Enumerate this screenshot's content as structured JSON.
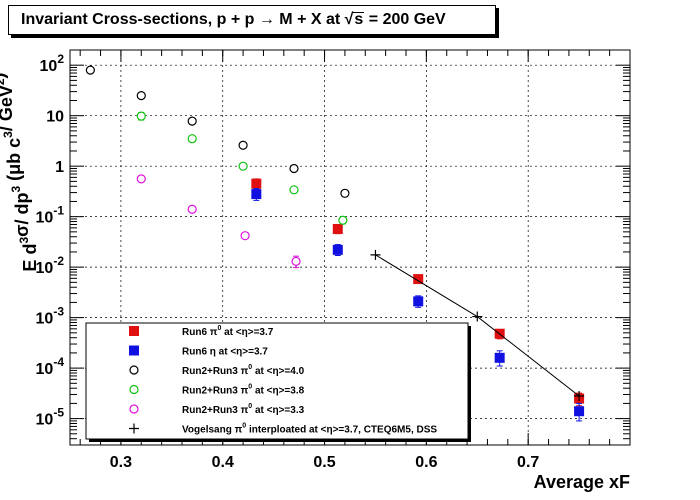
{
  "title": {
    "prefix": "Invariant Cross-sections, p + p → M + X at ",
    "sqrt": "√",
    "s": "s",
    "suffix": " = 200 GeV"
  },
  "chart_data": {
    "type": "scatter",
    "xlabel": "Average xF",
    "ylabel": "E d³σ/ dp³ (μb c³/ GeV²)",
    "xlim": [
      0.25,
      0.8
    ],
    "ylim": [
      3e-06,
      200
    ],
    "ylog": true,
    "grid": true,
    "legend_position": "bottom-left",
    "x_ticks": [
      {
        "value": 0.3,
        "label": "0.3"
      },
      {
        "value": 0.4,
        "label": "0.4"
      },
      {
        "value": 0.5,
        "label": "0.5"
      },
      {
        "value": 0.6,
        "label": "0.6"
      },
      {
        "value": 0.7,
        "label": "0.7"
      }
    ],
    "y_ticks": [
      {
        "value": 100,
        "mant": "10",
        "exp": "2"
      },
      {
        "value": 10,
        "mant": "10",
        "exp": ""
      },
      {
        "value": 1,
        "mant": "1",
        "exp": ""
      },
      {
        "value": 0.1,
        "mant": "10",
        "exp": "-1"
      },
      {
        "value": 0.01,
        "mant": "10",
        "exp": "-2"
      },
      {
        "value": 0.001,
        "mant": "10",
        "exp": "-3"
      },
      {
        "value": 0.0001,
        "mant": "10",
        "exp": "-4"
      },
      {
        "value": 1e-05,
        "mant": "10",
        "exp": "-5"
      }
    ],
    "series": [
      {
        "name": "Run6 π⁰ at <η>=3.7",
        "marker": "filled-square",
        "color": "#e01010",
        "points": [
          {
            "x": 0.433,
            "y": 0.45,
            "lo": 0.36,
            "hi": 0.56
          },
          {
            "x": 0.513,
            "y": 0.057,
            "lo": 0.046,
            "hi": 0.07
          },
          {
            "x": 0.592,
            "y": 0.0058,
            "lo": 0.0049,
            "hi": 0.0068
          },
          {
            "x": 0.672,
            "y": 0.00048,
            "lo": 0.00038,
            "hi": 0.00058
          },
          {
            "x": 0.75,
            "y": 2.5e-05,
            "lo": 1.8e-05,
            "hi": 3.2e-05
          }
        ]
      },
      {
        "name": "Run6 η at <η>=3.7",
        "marker": "filled-square",
        "color": "#1010e0",
        "points": [
          {
            "x": 0.433,
            "y": 0.28,
            "lo": 0.21,
            "hi": 0.36
          },
          {
            "x": 0.513,
            "y": 0.022,
            "lo": 0.017,
            "hi": 0.028
          },
          {
            "x": 0.592,
            "y": 0.0021,
            "lo": 0.0016,
            "hi": 0.0027
          },
          {
            "x": 0.672,
            "y": 0.00016,
            "lo": 0.00011,
            "hi": 0.00022
          },
          {
            "x": 0.75,
            "y": 1.4e-05,
            "lo": 9e-06,
            "hi": 2e-05
          }
        ]
      },
      {
        "name": "Run2+Run3 π⁰ at <η>=4.0",
        "marker": "open-circle",
        "color": "#000000",
        "points": [
          {
            "x": 0.27,
            "y": 80
          },
          {
            "x": 0.32,
            "y": 25
          },
          {
            "x": 0.37,
            "y": 7.8
          },
          {
            "x": 0.42,
            "y": 2.6
          },
          {
            "x": 0.47,
            "y": 0.9
          },
          {
            "x": 0.52,
            "y": 0.29
          }
        ]
      },
      {
        "name": "Run2+Run3 π⁰ at <η>=3.8",
        "marker": "open-circle",
        "color": "#10c010",
        "points": [
          {
            "x": 0.32,
            "y": 9.8,
            "lo": 8.2,
            "hi": 11.6
          },
          {
            "x": 0.37,
            "y": 3.5
          },
          {
            "x": 0.42,
            "y": 1.0
          },
          {
            "x": 0.47,
            "y": 0.34
          },
          {
            "x": 0.518,
            "y": 0.085,
            "lo": 0.072,
            "hi": 0.1
          }
        ]
      },
      {
        "name": "Run2+Run3 π⁰ at <η>=3.3",
        "marker": "open-circle",
        "color": "#e010e0",
        "points": [
          {
            "x": 0.32,
            "y": 0.56
          },
          {
            "x": 0.37,
            "y": 0.14
          },
          {
            "x": 0.422,
            "y": 0.042
          },
          {
            "x": 0.472,
            "y": 0.013,
            "lo": 0.0098,
            "hi": 0.0165
          }
        ]
      },
      {
        "name": "Vogelsang π⁰ interploated at <η>=3.7, CTEQ6M5, DSS",
        "marker": "cross-line",
        "color": "#000000",
        "points": [
          {
            "x": 0.55,
            "y": 0.0175
          },
          {
            "x": 0.65,
            "y": 0.00105
          },
          {
            "x": 0.75,
            "y": 2.8e-05
          }
        ]
      }
    ]
  },
  "legend": {
    "entries": [
      {
        "label_a": "Run6 π",
        "sup": "0",
        "label_b": " at <η>=3.7"
      },
      {
        "label_a": "Run6 η  at <η>=3.7",
        "sup": "",
        "label_b": ""
      },
      {
        "label_a": "Run2+Run3 π",
        "sup": "0",
        "label_b": " at <η>=4.0"
      },
      {
        "label_a": "Run2+Run3 π",
        "sup": "0",
        "label_b": " at <η>=3.8"
      },
      {
        "label_a": "Run2+Run3 π",
        "sup": "0",
        "label_b": " at <η>=3.3"
      },
      {
        "label_a": "Vogelsang π",
        "sup": "0",
        "label_b": " interploated at <η>=3.7, CTEQ6M5, DSS"
      }
    ]
  },
  "ylabel_parts": {
    "e": "E d",
    "e3": "3",
    "sigma": "σ/ dp",
    "p3": "3",
    "units": " (μb c",
    "c3": "3",
    "per": "/ GeV",
    "g2": "2",
    "close": ")"
  }
}
